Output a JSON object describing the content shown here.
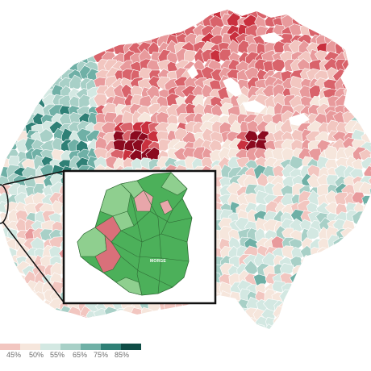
{
  "colors": {
    "deep_red": "#8b0a1f",
    "red": "#c9303e",
    "mid_red": "#d9636b",
    "light_red": "#e89a9c",
    "pale_red": "#f2c6c0",
    "cream": "#f6e6dc",
    "pale_teal": "#d3e8e2",
    "light_teal": "#a8d0c7",
    "teal": "#6fb0a6",
    "dark_teal": "#2f8076",
    "deepest_teal": "#0f4d46",
    "inset_green": "#4cb05a",
    "inset_light_green": "#8fcf8f",
    "inset_pink": "#e8a6aa",
    "inset_red": "#d9707a",
    "border": "#ffffff",
    "frame": "#111111"
  },
  "legend": {
    "labels": [
      "45%",
      "50%",
      "55%",
      "65%",
      "75%",
      "85%"
    ]
  },
  "inset": {
    "label": "MORGE"
  }
}
